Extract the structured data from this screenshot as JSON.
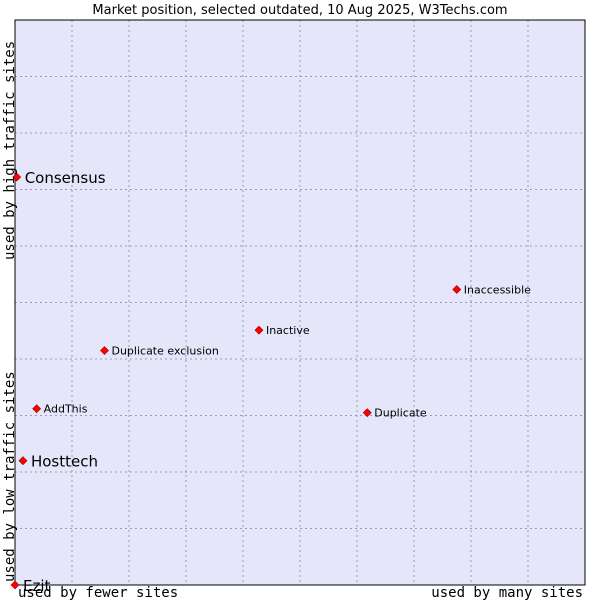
{
  "chart_data": {
    "type": "scatter",
    "title": "Market position, selected outdated, 10 Aug 2025, W3Techs.com",
    "xlabel_left": "used by fewer sites",
    "xlabel_right": "used by many sites",
    "ylabel_bottom": "used by low traffic sites",
    "ylabel_top": "used by high traffic sites",
    "xlim": [
      0,
      100
    ],
    "ylim": [
      0,
      100
    ],
    "grid": true,
    "colors": {
      "plot_bg": "#e6e6fa",
      "point": "#ff0000",
      "point_edge": "#990000",
      "frame": "#000000"
    },
    "points": [
      {
        "name": "Consensus",
        "x": 0.3,
        "y": 72.2,
        "emphasis": true
      },
      {
        "name": "Inaccessible",
        "x": 77.5,
        "y": 52.3,
        "emphasis": false
      },
      {
        "name": "Inactive",
        "x": 42.8,
        "y": 45.1,
        "emphasis": false
      },
      {
        "name": "Duplicate exclusion",
        "x": 15.7,
        "y": 41.5,
        "emphasis": false
      },
      {
        "name": "AddThis",
        "x": 3.8,
        "y": 31.2,
        "emphasis": false
      },
      {
        "name": "Duplicate",
        "x": 61.8,
        "y": 30.5,
        "emphasis": false
      },
      {
        "name": "Hosttech",
        "x": 1.4,
        "y": 22.0,
        "emphasis": true
      },
      {
        "name": "Ezit",
        "x": 0.0,
        "y": 0.0,
        "emphasis": true
      }
    ]
  }
}
